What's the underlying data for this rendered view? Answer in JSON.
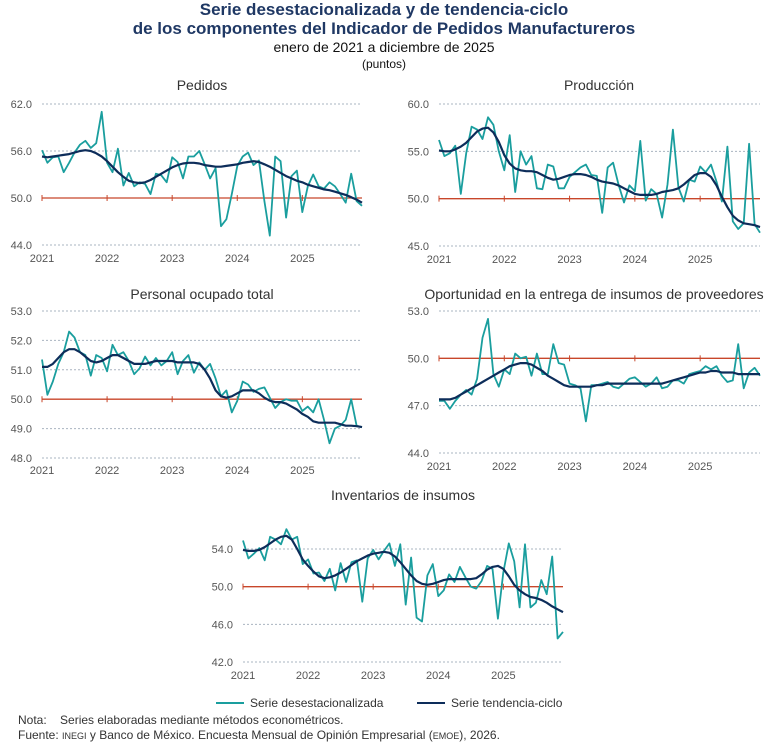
{
  "header": {
    "title_line1": "Serie desestacionalizada y de tendencia-ciclo",
    "title_line2": "de los componentes del Indicador de Pedidos Manufactureros",
    "subtitle": "enero de 2021 a diciembre de 2025",
    "units": "(puntos)"
  },
  "legend": {
    "sa": "Serie desestacionalizada",
    "trend": "Serie tendencia-ciclo"
  },
  "colors": {
    "sa": "#1a9e9e",
    "trend": "#0d2d5a",
    "threshold": "#c8462a",
    "title": "#1f3864"
  },
  "footer": {
    "note_label": "Nota:",
    "note_text": "Series elaboradas mediante métodos econométricos.",
    "source_label": "Fuente:",
    "source_inegi": "INEGI",
    "source_text_1": " y Banco de México. Encuesta Mensual de Opinión Empresarial (",
    "source_emoe": "EMOE",
    "source_text_2": "), 2026."
  },
  "chart_data": [
    {
      "type": "line",
      "title": "Pedidos",
      "x_ticks": [
        "2021",
        "2022",
        "2023",
        "2024",
        "2025"
      ],
      "y_ticks": [
        "44.0",
        "50.0",
        "56.0",
        "62.0"
      ],
      "ylim": [
        44,
        62
      ],
      "threshold": 50,
      "period": "2021-01 to 2025-12 monthly",
      "grid": true,
      "series": [
        {
          "name": "Serie desestacionalizada",
          "values": [
            56.1,
            54.5,
            55.2,
            55.3,
            53.3,
            54.5,
            55.8,
            56.8,
            57.3,
            56.4,
            57.0,
            61.0,
            54.5,
            53.3,
            56.3,
            51.6,
            53.2,
            51.5,
            52.0,
            51.8,
            50.5,
            53.1,
            52.9,
            52.0,
            55.2,
            54.6,
            52.5,
            55.3,
            55.3,
            56.0,
            54.3,
            52.5,
            53.8,
            46.4,
            47.3,
            50.5,
            54.1,
            55.3,
            55.8,
            54.2,
            54.8,
            49.6,
            45.2,
            55.3,
            54.7,
            47.5,
            52.8,
            53.5,
            48.2,
            51.5,
            53.0,
            51.5,
            51.2,
            52.0,
            51.5,
            50.5,
            49.4,
            53.1,
            49.6,
            49.0
          ]
        },
        {
          "name": "Serie tendencia-ciclo",
          "values": [
            55.3,
            55.2,
            55.3,
            55.4,
            55.5,
            55.6,
            55.8,
            56.0,
            56.1,
            56.0,
            55.7,
            55.3,
            54.7,
            54.0,
            53.3,
            52.7,
            52.2,
            52.0,
            51.9,
            52.0,
            52.3,
            52.7,
            53.1,
            53.5,
            53.9,
            54.2,
            54.4,
            54.5,
            54.5,
            54.4,
            54.2,
            54.1,
            54.0,
            54.0,
            54.1,
            54.2,
            54.3,
            54.5,
            54.6,
            54.7,
            54.6,
            54.3,
            54.0,
            53.6,
            53.2,
            52.8,
            52.5,
            52.2,
            52.0,
            51.7,
            51.5,
            51.3,
            51.1,
            51.0,
            50.8,
            50.6,
            50.4,
            50.1,
            49.8,
            49.4
          ]
        }
      ]
    },
    {
      "type": "line",
      "title": "Producción",
      "x_ticks": [
        "2021",
        "2022",
        "2023",
        "2024",
        "2025"
      ],
      "y_ticks": [
        "45.0",
        "50.0",
        "55.0",
        "60.0"
      ],
      "ylim": [
        45,
        60
      ],
      "threshold": 50,
      "period": "2021-01 to 2025-12 monthly",
      "grid": true,
      "series": [
        {
          "name": "Serie desestacionalizada",
          "values": [
            56.2,
            54.5,
            54.8,
            55.6,
            50.5,
            54.8,
            57.6,
            57.3,
            56.3,
            58.6,
            57.8,
            55.0,
            53.0,
            56.7,
            50.7,
            55.0,
            53.6,
            54.5,
            51.1,
            51.0,
            53.6,
            53.4,
            51.1,
            51.1,
            52.3,
            52.8,
            53.3,
            53.6,
            52.5,
            52.4,
            48.5,
            53.3,
            53.8,
            51.5,
            49.6,
            51.4,
            50.8,
            56.1,
            49.8,
            51.0,
            50.5,
            48.0,
            51.5,
            57.3,
            51.2,
            49.7,
            52.0,
            51.8,
            53.4,
            52.8,
            53.6,
            51.8,
            49.7,
            55.5,
            47.6,
            46.8,
            47.4,
            55.8,
            47.3,
            46.4
          ]
        },
        {
          "name": "Serie tendencia-ciclo",
          "values": [
            55.1,
            55.0,
            55.0,
            55.2,
            55.5,
            55.9,
            56.5,
            57.1,
            57.4,
            57.5,
            57.0,
            56.0,
            54.6,
            53.7,
            53.2,
            53.0,
            52.9,
            52.9,
            52.8,
            52.5,
            52.2,
            52.0,
            52.1,
            52.3,
            52.5,
            52.6,
            52.6,
            52.5,
            52.3,
            52.0,
            51.8,
            51.7,
            51.6,
            51.4,
            51.1,
            50.8,
            50.5,
            50.4,
            50.4,
            50.4,
            50.5,
            50.7,
            50.8,
            50.9,
            51.1,
            51.5,
            52.0,
            52.5,
            52.7,
            52.7,
            52.3,
            51.4,
            50.2,
            49.1,
            48.2,
            47.7,
            47.4,
            47.3,
            47.2,
            47.0
          ]
        }
      ]
    },
    {
      "type": "line",
      "title": "Personal ocupado total",
      "x_ticks": [
        "2021",
        "2022",
        "2023",
        "2024",
        "2025"
      ],
      "y_ticks": [
        "48.0",
        "49.0",
        "50.0",
        "51.0",
        "52.0",
        "53.0"
      ],
      "ylim": [
        48,
        53
      ],
      "threshold": 50,
      "period": "2021-01 to 2025-12 monthly",
      "grid": true,
      "series": [
        {
          "name": "Serie desestacionalizada",
          "values": [
            51.35,
            50.15,
            50.6,
            51.2,
            51.6,
            52.3,
            52.1,
            51.6,
            51.5,
            50.8,
            51.5,
            51.4,
            50.95,
            51.85,
            51.5,
            51.6,
            51.3,
            50.85,
            51.05,
            51.45,
            51.15,
            51.4,
            51.15,
            51.3,
            51.6,
            50.85,
            51.3,
            51.5,
            50.9,
            51.25,
            51.0,
            51.2,
            50.7,
            50.1,
            50.3,
            49.55,
            49.95,
            50.6,
            50.5,
            50.25,
            50.35,
            50.4,
            50.05,
            49.7,
            49.9,
            50.0,
            49.95,
            49.95,
            49.6,
            49.75,
            49.55,
            50.0,
            49.3,
            48.5,
            49.0,
            49.1,
            49.3,
            50.0,
            49.1,
            49.05
          ]
        },
        {
          "name": "Serie tendencia-ciclo",
          "values": [
            51.1,
            51.1,
            51.2,
            51.4,
            51.6,
            51.7,
            51.7,
            51.6,
            51.45,
            51.3,
            51.25,
            51.3,
            51.4,
            51.5,
            51.5,
            51.4,
            51.3,
            51.2,
            51.2,
            51.2,
            51.25,
            51.3,
            51.3,
            51.3,
            51.3,
            51.25,
            51.25,
            51.25,
            51.25,
            51.2,
            51.0,
            50.7,
            50.3,
            50.1,
            50.05,
            50.1,
            50.2,
            50.3,
            50.3,
            50.3,
            50.2,
            50.05,
            49.95,
            49.9,
            49.9,
            49.85,
            49.75,
            49.65,
            49.5,
            49.4,
            49.25,
            49.2,
            49.2,
            49.2,
            49.2,
            49.15,
            49.1,
            49.1,
            49.08,
            49.05
          ]
        }
      ]
    },
    {
      "type": "line",
      "title": "Oportunidad en la entrega de insumos de proveedores",
      "x_ticks": [
        "2021",
        "2022",
        "2023",
        "2024",
        "2025"
      ],
      "y_ticks": [
        "44.0",
        "47.0",
        "50.0",
        "53.0"
      ],
      "ylim": [
        44,
        53
      ],
      "threshold": 50,
      "period": "2021-01 to 2025-12 monthly",
      "grid": true,
      "series": [
        {
          "name": "Serie desestacionalizada",
          "values": [
            47.3,
            47.3,
            46.8,
            47.3,
            47.7,
            48.0,
            47.7,
            48.7,
            51.3,
            52.5,
            49.0,
            48.2,
            49.3,
            49.0,
            50.3,
            50.0,
            50.1,
            48.9,
            50.3,
            49.0,
            49.0,
            50.9,
            49.7,
            49.6,
            48.4,
            48.3,
            48.1,
            46.0,
            48.3,
            48.3,
            48.4,
            48.5,
            48.2,
            48.1,
            48.4,
            48.7,
            48.8,
            48.5,
            48.2,
            48.4,
            48.8,
            48.1,
            48.2,
            48.6,
            48.6,
            48.4,
            49.0,
            49.1,
            49.2,
            49.5,
            49.3,
            49.5,
            48.9,
            48.5,
            48.6,
            50.9,
            48.1,
            49.1,
            49.4,
            48.9
          ]
        },
        {
          "name": "Serie tendencia-ciclo",
          "values": [
            47.4,
            47.4,
            47.4,
            47.5,
            47.7,
            47.9,
            48.1,
            48.3,
            48.5,
            48.7,
            48.9,
            49.1,
            49.3,
            49.5,
            49.6,
            49.7,
            49.7,
            49.6,
            49.4,
            49.2,
            48.9,
            48.7,
            48.5,
            48.3,
            48.2,
            48.2,
            48.2,
            48.2,
            48.2,
            48.3,
            48.3,
            48.4,
            48.4,
            48.4,
            48.4,
            48.4,
            48.4,
            48.4,
            48.4,
            48.4,
            48.4,
            48.4,
            48.5,
            48.6,
            48.7,
            48.8,
            48.9,
            49.0,
            49.1,
            49.1,
            49.2,
            49.2,
            49.1,
            49.1,
            49.1,
            49.0,
            49.0,
            49.0,
            49.0,
            49.0
          ]
        }
      ]
    },
    {
      "type": "line",
      "title": "Inventarios de insumos",
      "x_ticks": [
        "2021",
        "2022",
        "2023",
        "2024",
        "2025"
      ],
      "y_ticks": [
        "42.0",
        "46.0",
        "50.0",
        "54.0"
      ],
      "ylim": [
        42,
        55.5
      ],
      "threshold": 50,
      "period": "2021-01 to 2025-12 monthly",
      "grid": true,
      "series": [
        {
          "name": "Serie desestacionalizada",
          "values": [
            54.9,
            53.0,
            53.5,
            54.1,
            52.8,
            55.3,
            55.0,
            54.5,
            56.1,
            55.0,
            55.3,
            52.4,
            52.9,
            51.4,
            51.5,
            50.6,
            51.9,
            49.6,
            52.5,
            50.5,
            52.6,
            52.8,
            48.4,
            53.0,
            53.9,
            52.9,
            53.8,
            54.6,
            52.2,
            54.5,
            48.1,
            53.1,
            46.7,
            46.3,
            51.2,
            52.4,
            49.0,
            49.6,
            51.3,
            50.5,
            52.1,
            51.0,
            50.0,
            49.8,
            50.6,
            52.2,
            51.9,
            46.6,
            51.5,
            54.6,
            52.7,
            47.8,
            54.5,
            47.8,
            48.3,
            50.7,
            49.2,
            53.2,
            44.5,
            45.2
          ]
        },
        {
          "name": "Serie tendencia-ciclo",
          "values": [
            53.9,
            53.8,
            53.8,
            53.9,
            54.2,
            54.6,
            55.0,
            55.3,
            55.4,
            55.0,
            54.0,
            52.9,
            52.2,
            51.6,
            51.1,
            50.9,
            51.0,
            51.2,
            51.5,
            51.9,
            52.3,
            52.7,
            53.0,
            53.3,
            53.5,
            53.6,
            53.7,
            53.6,
            53.2,
            52.6,
            51.9,
            51.2,
            50.6,
            50.3,
            50.2,
            50.3,
            50.5,
            50.7,
            50.8,
            50.8,
            50.8,
            50.8,
            50.8,
            50.9,
            51.3,
            51.8,
            52.1,
            52.2,
            51.9,
            51.1,
            50.2,
            49.6,
            49.2,
            48.9,
            48.8,
            48.6,
            48.3,
            47.9,
            47.6,
            47.3
          ]
        }
      ]
    }
  ]
}
